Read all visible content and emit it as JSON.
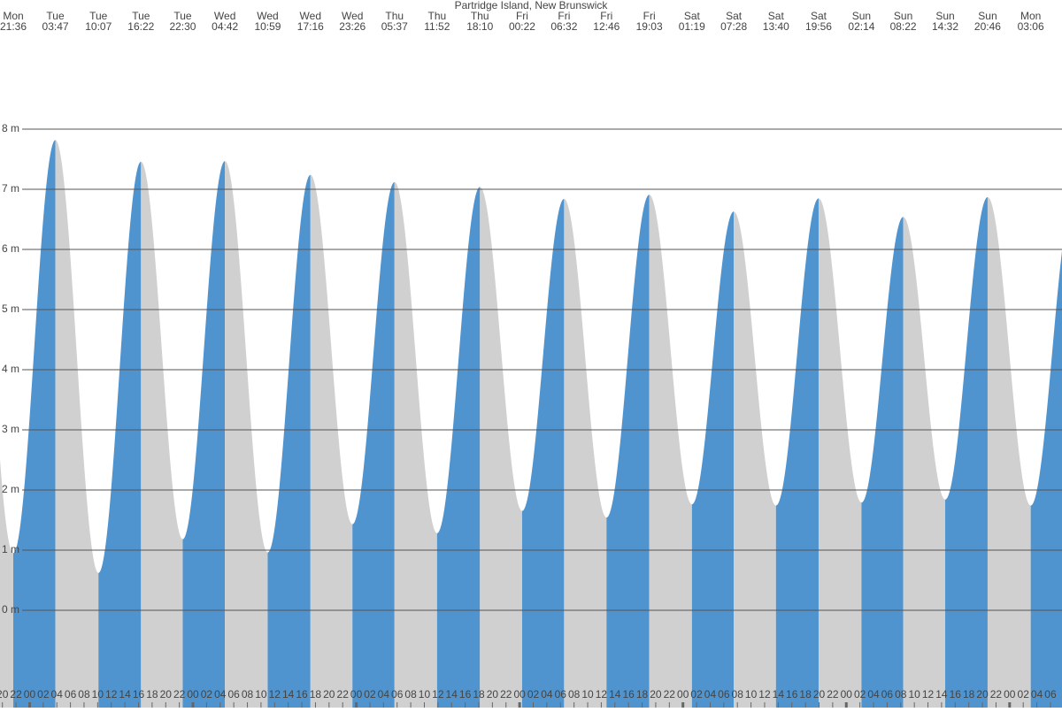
{
  "chart_data": {
    "type": "tide-area",
    "title": "Partridge Island, New Brunswick",
    "rising_color": "#4f94cf",
    "falling_color": "#d0d0d0",
    "extremes": [
      {
        "day": "Mon",
        "time": "21:36",
        "height": 0.95
      },
      {
        "day": "Tue",
        "time": "03:47",
        "height": 7.82
      },
      {
        "day": "Tue",
        "time": "10:07",
        "height": 0.62
      },
      {
        "day": "Tue",
        "time": "16:22",
        "height": 7.46
      },
      {
        "day": "Tue",
        "time": "22:30",
        "height": 1.18
      },
      {
        "day": "Wed",
        "time": "04:42",
        "height": 7.47
      },
      {
        "day": "Wed",
        "time": "10:59",
        "height": 0.96
      },
      {
        "day": "Wed",
        "time": "17:16",
        "height": 7.24
      },
      {
        "day": "Wed",
        "time": "23:26",
        "height": 1.43
      },
      {
        "day": "Thu",
        "time": "05:37",
        "height": 7.12
      },
      {
        "day": "Thu",
        "time": "11:52",
        "height": 1.28
      },
      {
        "day": "Thu",
        "time": "18:10",
        "height": 7.04
      },
      {
        "day": "Fri",
        "time": "00:22",
        "height": 1.65
      },
      {
        "day": "Fri",
        "time": "06:32",
        "height": 6.84
      },
      {
        "day": "Fri",
        "time": "12:46",
        "height": 1.54
      },
      {
        "day": "Fri",
        "time": "19:03",
        "height": 6.91
      },
      {
        "day": "Sat",
        "time": "01:19",
        "height": 1.76
      },
      {
        "day": "Sat",
        "time": "07:28",
        "height": 6.63
      },
      {
        "day": "Sat",
        "time": "13:40",
        "height": 1.74
      },
      {
        "day": "Sat",
        "time": "19:56",
        "height": 6.85
      },
      {
        "day": "Sun",
        "time": "02:14",
        "height": 1.79
      },
      {
        "day": "Sun",
        "time": "08:22",
        "height": 6.54
      },
      {
        "day": "Sun",
        "time": "14:32",
        "height": 1.84
      },
      {
        "day": "Sun",
        "time": "20:46",
        "height": 6.87
      },
      {
        "day": "Mon",
        "time": "03:06",
        "height": 1.74
      }
    ],
    "ylim": [
      -1.6,
      10.15
    ],
    "yticks": [
      {
        "value": 0,
        "label": "0 m"
      },
      {
        "value": 1,
        "label": "1 m"
      },
      {
        "value": 2,
        "label": "2 m"
      },
      {
        "value": 3,
        "label": "3 m"
      },
      {
        "value": 4,
        "label": "4 m"
      },
      {
        "value": 5,
        "label": "5 m"
      },
      {
        "value": 6,
        "label": "6 m"
      },
      {
        "value": 7,
        "label": "7 m"
      },
      {
        "value": 8,
        "label": "8 m"
      }
    ],
    "grid": true,
    "hour_labels": [
      "20",
      "22",
      "00",
      "02",
      "04",
      "06",
      "08",
      "10",
      "12",
      "14",
      "16",
      "18",
      "20",
      "22",
      "00",
      "02",
      "04",
      "06",
      "08",
      "10",
      "12",
      "14",
      "16",
      "18",
      "20",
      "22",
      "00",
      "02",
      "04",
      "06",
      "08",
      "10",
      "12",
      "14",
      "16",
      "18",
      "20",
      "22",
      "00",
      "02",
      "04",
      "06",
      "08",
      "10",
      "12",
      "14",
      "16",
      "18",
      "20",
      "22",
      "00",
      "02",
      "04",
      "06",
      "08",
      "10",
      "12",
      "14",
      "16",
      "18",
      "20",
      "22",
      "00",
      "02",
      "04",
      "06",
      "08",
      "10",
      "12",
      "14",
      "16",
      "18",
      "20",
      "22",
      "00",
      "02",
      "04",
      "06"
    ]
  }
}
